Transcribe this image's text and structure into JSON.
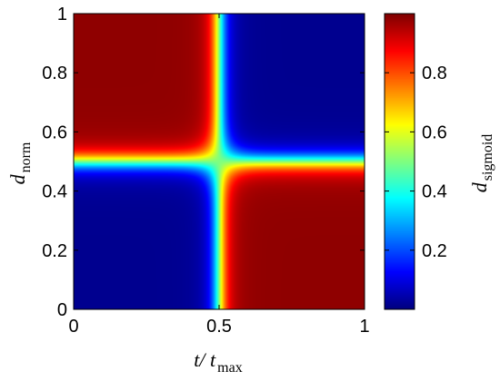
{
  "chart_data": {
    "type": "heatmap",
    "title": "",
    "xlabel": {
      "main": "t/ t",
      "sub": "max"
    },
    "ylabel": {
      "main": "d",
      "sub": "norm"
    },
    "colorbar_label": {
      "main": "d",
      "sub": "sigmoid"
    },
    "xlim": [
      0,
      1
    ],
    "ylim": [
      0,
      1
    ],
    "x_ticks": [
      0,
      0.5,
      1
    ],
    "x_tick_labels": [
      "0",
      "0.5",
      "1"
    ],
    "y_ticks": [
      0,
      0.2,
      0.4,
      0.6,
      0.8,
      1
    ],
    "y_tick_labels": [
      "0",
      "0.2",
      "0.4",
      "0.6",
      "0.8",
      "1"
    ],
    "colorbar_ticks": [
      0.2,
      0.4,
      0.6,
      0.8
    ],
    "colorbar_tick_labels": [
      "0.2",
      "0.4",
      "0.6",
      "0.8"
    ],
    "colorbar_range": [
      0,
      1
    ],
    "colormap": "jet",
    "grid": false,
    "surface_description_points": [
      {
        "x": 0,
        "y": 1,
        "value": 0.99
      },
      {
        "x": 1,
        "y": 1,
        "value": 0.01
      },
      {
        "x": 0,
        "y": 0,
        "value": 0.01
      },
      {
        "x": 1,
        "y": 0,
        "value": 0.99
      },
      {
        "x": 0.5,
        "y": 0.5,
        "value": 0.5
      }
    ]
  }
}
